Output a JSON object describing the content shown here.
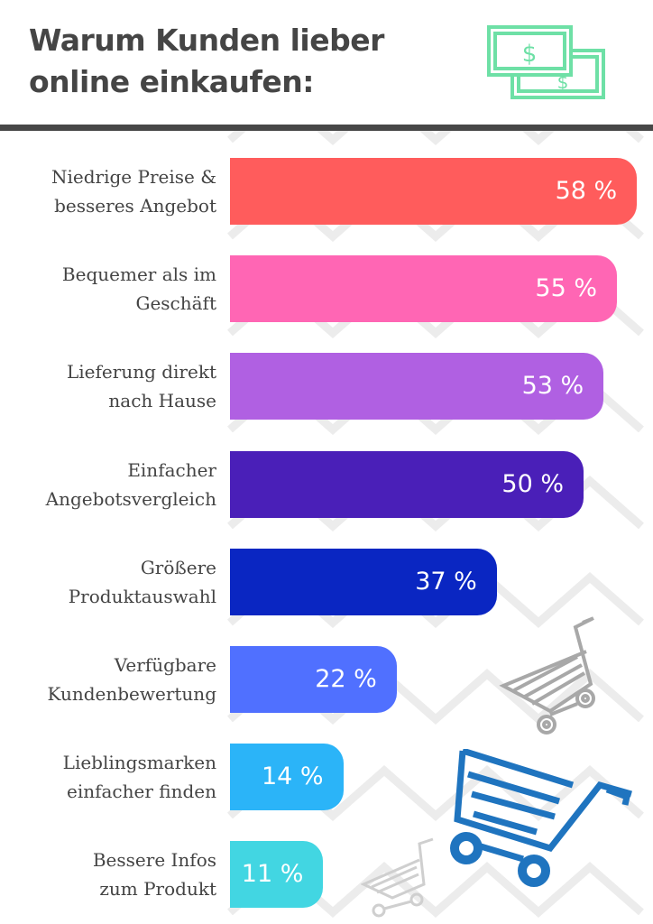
{
  "title_line1": "Warum Kunden lieber",
  "title_line2": "online einkaufen:",
  "chart_data": {
    "type": "bar",
    "orientation": "horizontal",
    "categories": [
      [
        "Niedrige Preise &",
        "besseres Angebot"
      ],
      [
        "Bequemer als im",
        "Geschäft"
      ],
      [
        "Lieferung direkt",
        "nach Hause"
      ],
      [
        "Einfacher",
        "Angebotsvergleich"
      ],
      [
        "Größere",
        "Produktauswahl"
      ],
      [
        "Verfügbare",
        "Kundenbewertung"
      ],
      [
        "Lieblingsmarken",
        "einfacher finden"
      ],
      [
        "Bessere Infos",
        "zum Produkt"
      ]
    ],
    "values": [
      58,
      55,
      53,
      50,
      37,
      22,
      14,
      11
    ],
    "value_labels": [
      "58 %",
      "55 %",
      "53 %",
      "50 %",
      "37 %",
      "22 %",
      "14 %",
      "11 %"
    ],
    "colors": [
      "#ff5c5c",
      "#ff66b4",
      "#b060e2",
      "#4a1fb8",
      "#0a26c2",
      "#5070ff",
      "#2bb4f8",
      "#42d6e2"
    ]
  },
  "icons": {
    "money": "money-bills-icon",
    "money_color": "#6ee0a6",
    "cart_main_color": "#1f74bf",
    "cart_gray_color": "#a8a8a8"
  }
}
